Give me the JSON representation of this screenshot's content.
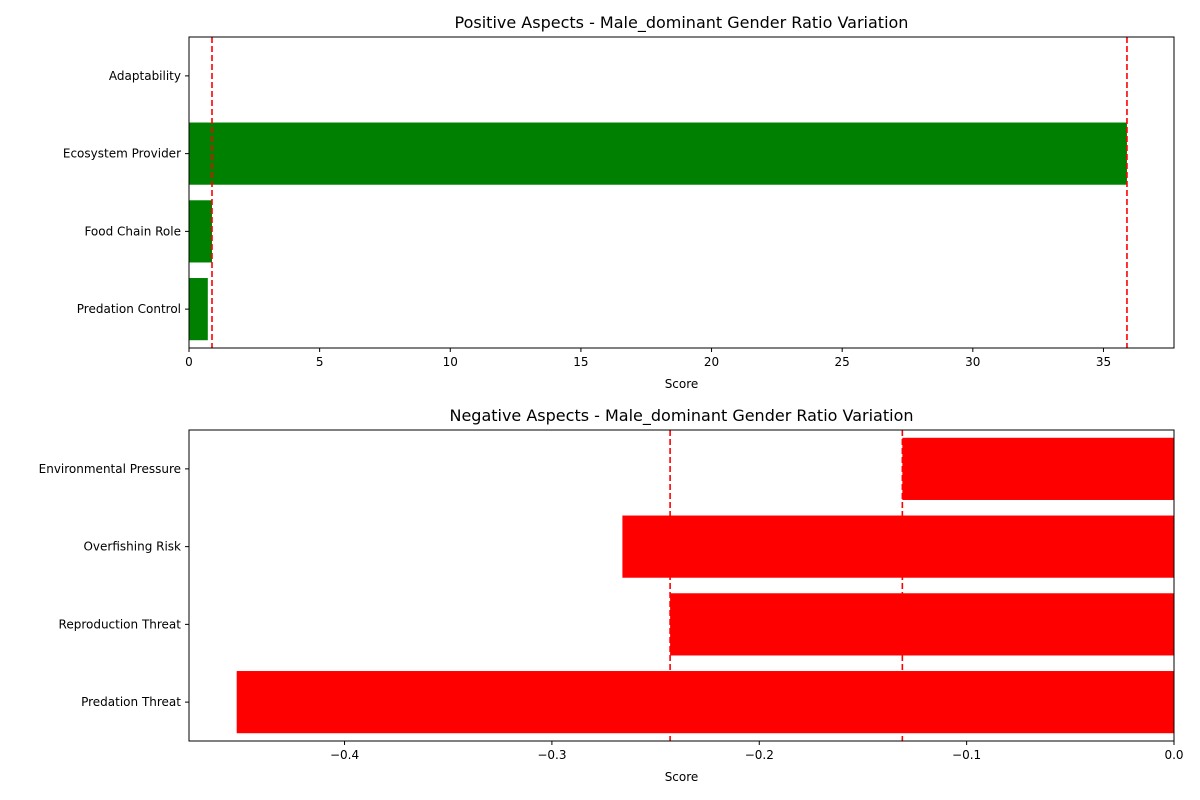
{
  "chart_data": [
    {
      "type": "bar",
      "orientation": "horizontal",
      "title": "Positive Aspects - Male_dominant Gender Ratio Variation",
      "xlabel": "Score",
      "ylabel": "",
      "xlim": [
        0,
        37.7
      ],
      "xticks": [
        0,
        5,
        10,
        15,
        20,
        25,
        30,
        35
      ],
      "xtick_labels": [
        "0",
        "5",
        "10",
        "15",
        "20",
        "25",
        "30",
        "35"
      ],
      "categories": [
        "Adaptability",
        "Ecosystem Provider",
        "Food Chain Role",
        "Predation Control"
      ],
      "values": [
        0.0,
        35.9,
        0.88,
        0.72
      ],
      "bar_color": "#008000",
      "reference_lines": [
        0.88,
        35.9
      ],
      "reference_line_color": "#ff0000",
      "reference_line_style": "dashed",
      "grid": false,
      "legend": "none"
    },
    {
      "type": "bar",
      "orientation": "horizontal",
      "title": "Negative Aspects - Male_dominant Gender Ratio Variation",
      "xlabel": "Score",
      "ylabel": "",
      "xlim": [
        -0.475,
        0
      ],
      "xticks": [
        -0.4,
        -0.3,
        -0.2,
        -0.1,
        0.0
      ],
      "xtick_labels": [
        "−0.4",
        "−0.3",
        "−0.2",
        "−0.1",
        "0.0"
      ],
      "categories": [
        "Environmental Pressure",
        "Overfishing Risk",
        "Reproduction Threat",
        "Predation Threat"
      ],
      "values": [
        -0.131,
        -0.266,
        -0.243,
        -0.452
      ],
      "bar_color": "#ff0000",
      "reference_lines": [
        -0.243,
        -0.131
      ],
      "reference_line_color": "#ff0000",
      "reference_line_style": "dashed",
      "grid": false,
      "legend": "none"
    }
  ]
}
